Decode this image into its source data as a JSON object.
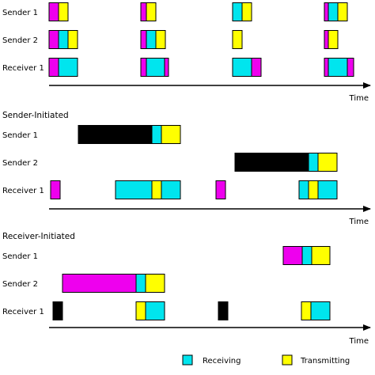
{
  "colors": {
    "receiving": "#00e5ee",
    "transmitting": "#ffff00",
    "magenta": "#ee00ee",
    "black": "#000000"
  },
  "axis_label": "Time",
  "legend": {
    "receiving": "Receiving",
    "transmitting": "Transmitting"
  },
  "panels": [
    {
      "title": "",
      "rows": [
        {
          "label": "Sender 1",
          "blocks": [
            {
              "c": "magenta",
              "s": 0,
              "e": 12
            },
            {
              "c": "transmitting",
              "s": 12,
              "e": 24
            },
            {
              "c": "magenta",
              "s": 116,
              "e": 123
            },
            {
              "c": "transmitting",
              "s": 123,
              "e": 135
            },
            {
              "c": "receiving",
              "s": 232,
              "e": 244
            },
            {
              "c": "transmitting",
              "s": 244,
              "e": 256
            },
            {
              "c": "magenta",
              "s": 348,
              "e": 353
            },
            {
              "c": "receiving",
              "s": 353,
              "e": 365
            },
            {
              "c": "transmitting",
              "s": 365,
              "e": 377
            }
          ]
        },
        {
          "label": "Sender 2",
          "blocks": [
            {
              "c": "magenta",
              "s": 0,
              "e": 12
            },
            {
              "c": "receiving",
              "s": 12,
              "e": 24
            },
            {
              "c": "transmitting",
              "s": 24,
              "e": 36
            },
            {
              "c": "magenta",
              "s": 116,
              "e": 123
            },
            {
              "c": "receiving",
              "s": 123,
              "e": 135
            },
            {
              "c": "transmitting",
              "s": 135,
              "e": 147
            },
            {
              "c": "transmitting",
              "s": 232,
              "e": 244
            },
            {
              "c": "magenta",
              "s": 348,
              "e": 353
            },
            {
              "c": "transmitting",
              "s": 353,
              "e": 365
            }
          ]
        },
        {
          "label": "Receiver 1",
          "blocks": [
            {
              "c": "magenta",
              "s": 0,
              "e": 12
            },
            {
              "c": "receiving",
              "s": 12,
              "e": 36
            },
            {
              "c": "magenta",
              "s": 116,
              "e": 123
            },
            {
              "c": "receiving",
              "s": 123,
              "e": 146
            },
            {
              "c": "magenta",
              "s": 146,
              "e": 151
            },
            {
              "c": "receiving",
              "s": 232,
              "e": 256
            },
            {
              "c": "magenta",
              "s": 256,
              "e": 268
            },
            {
              "c": "magenta",
              "s": 348,
              "e": 353
            },
            {
              "c": "receiving",
              "s": 353,
              "e": 377
            },
            {
              "c": "magenta",
              "s": 377,
              "e": 385
            }
          ]
        }
      ]
    },
    {
      "title": "Sender-Initiated",
      "rows": [
        {
          "label": "Sender 1",
          "blocks": [
            {
              "c": "black",
              "s": 37,
              "e": 130
            },
            {
              "c": "receiving",
              "s": 130,
              "e": 142
            },
            {
              "c": "transmitting",
              "s": 142,
              "e": 166
            }
          ]
        },
        {
          "label": "Sender 2",
          "blocks": [
            {
              "c": "black",
              "s": 235,
              "e": 328
            },
            {
              "c": "receiving",
              "s": 328,
              "e": 340
            },
            {
              "c": "transmitting",
              "s": 340,
              "e": 364
            }
          ]
        },
        {
          "label": "Receiver 1",
          "blocks": [
            {
              "c": "magenta",
              "s": 2,
              "e": 14
            },
            {
              "c": "receiving",
              "s": 84,
              "e": 130
            },
            {
              "c": "transmitting",
              "s": 130,
              "e": 142
            },
            {
              "c": "receiving",
              "s": 142,
              "e": 166
            },
            {
              "c": "magenta",
              "s": 211,
              "e": 223
            },
            {
              "c": "receiving",
              "s": 316,
              "e": 328
            },
            {
              "c": "transmitting",
              "s": 328,
              "e": 340
            },
            {
              "c": "receiving",
              "s": 340,
              "e": 364
            }
          ]
        }
      ]
    },
    {
      "title": "Receiver-Initiated",
      "rows": [
        {
          "label": "Sender 1",
          "blocks": [
            {
              "c": "magenta",
              "s": 296,
              "e": 320
            },
            {
              "c": "receiving",
              "s": 320,
              "e": 332
            },
            {
              "c": "transmitting",
              "s": 332,
              "e": 355
            }
          ]
        },
        {
          "label": "Sender 2",
          "blocks": [
            {
              "c": "magenta",
              "s": 17,
              "e": 110
            },
            {
              "c": "receiving",
              "s": 110,
              "e": 122
            },
            {
              "c": "transmitting",
              "s": 122,
              "e": 146
            }
          ]
        },
        {
          "label": "Receiver 1",
          "blocks": [
            {
              "c": "black",
              "s": 5,
              "e": 17
            },
            {
              "c": "transmitting",
              "s": 110,
              "e": 122
            },
            {
              "c": "receiving",
              "s": 122,
              "e": 146
            },
            {
              "c": "black",
              "s": 214,
              "e": 226
            },
            {
              "c": "transmitting",
              "s": 319,
              "e": 331
            },
            {
              "c": "receiving",
              "s": 331,
              "e": 355
            }
          ]
        }
      ]
    }
  ]
}
